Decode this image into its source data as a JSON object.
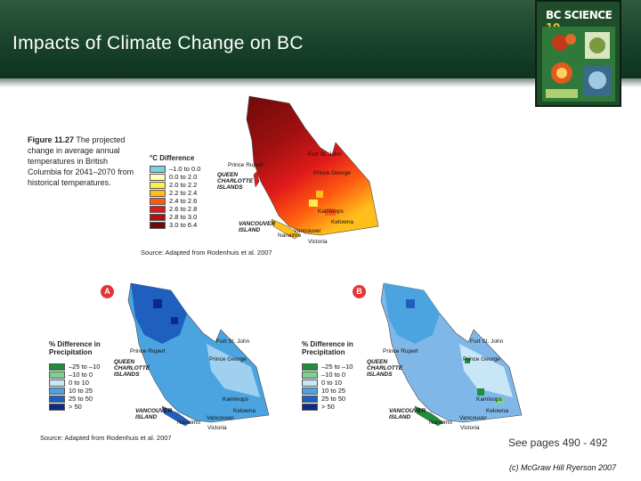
{
  "slide": {
    "title": "Impacts of Climate Change on BC",
    "book_cover": {
      "title_part1": "BC SCIENCE",
      "title_part2": "10"
    },
    "figure": {
      "label": "Figure 11.27",
      "caption": "The projected change in average annual temperatures in British Columbia for 2041–2070 from historical temperatures.",
      "source_top": "Source: Adapted from Rodenhuis et al. 2007",
      "source_bottom": "Source: Adapted from Rodenhuis et al. 2007"
    },
    "temperature_legend": {
      "title": "°C Difference",
      "entries": [
        {
          "label": "–1.0 to 0.0",
          "color": "#7fcfe0"
        },
        {
          "label": "0.0 to 2.0",
          "color": "#ffffc0"
        },
        {
          "label": "2.0 to 2.2",
          "color": "#ffef4a"
        },
        {
          "label": "2.2 to 2.4",
          "color": "#ffbf1a"
        },
        {
          "label": "2.4 to 2.6",
          "color": "#ff5a10"
        },
        {
          "label": "2.6 to 2.8",
          "color": "#e01a1a"
        },
        {
          "label": "2.8 to 3.0",
          "color": "#b01010"
        },
        {
          "label": "3.0 to 6.4",
          "color": "#6e0a0a"
        }
      ]
    },
    "precip_legend": {
      "title": "% Difference in Precipitation",
      "entries": [
        {
          "label": "–25 to –10",
          "color": "#1f8f3a"
        },
        {
          "label": "–10 to 0",
          "color": "#7fd08a"
        },
        {
          "label": "0 to 10",
          "color": "#c9e6f7"
        },
        {
          "label": "10 to 25",
          "color": "#4ba4e0"
        },
        {
          "label": "25 to 50",
          "color": "#1f5fc0"
        },
        {
          "label": "> 50",
          "color": "#0d2a8a"
        }
      ]
    },
    "map_badges": {
      "a": "A",
      "b": "B"
    },
    "map_labels": {
      "fort_st_john": "Fort St. John",
      "prince_rupert": "Prince Rupert",
      "prince_george": "Prince George",
      "queen_charlotte": "QUEEN CHARLOTTE ISLANDS",
      "kamloops": "Kamloops",
      "kelowna": "Kelowna",
      "vancouver_island": "VANCOUVER ISLAND",
      "vancouver": "Vancouver",
      "nanaimo": "Nanaimo",
      "victoria": "Victoria"
    },
    "see_pages": "See pages 490 - 492",
    "copyright": "(c) McGraw Hill Ryerson 2007"
  }
}
